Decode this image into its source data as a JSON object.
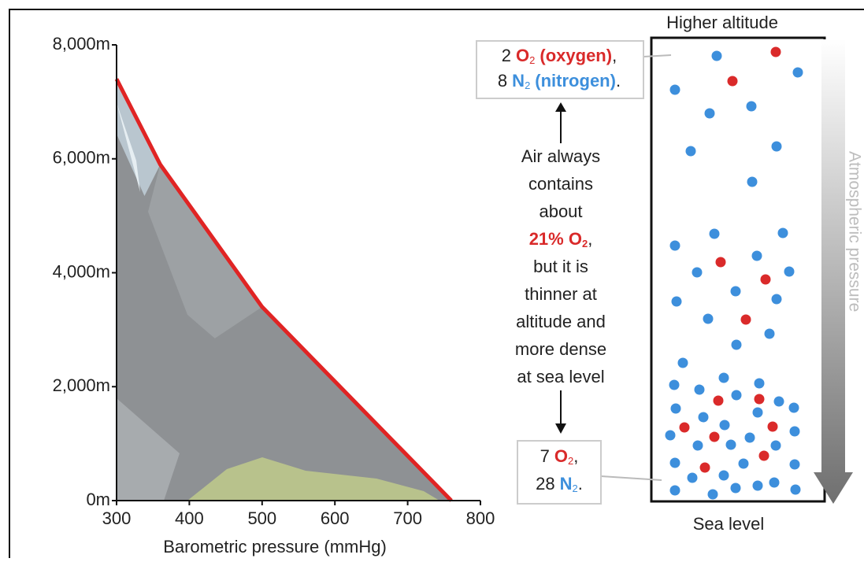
{
  "chart_data": {
    "type": "line",
    "x_label": "Barometric pressure (mmHg)",
    "xlim": [
      300,
      800
    ],
    "xticks": [
      300,
      400,
      500,
      600,
      700,
      800
    ],
    "ylim": [
      0,
      8000
    ],
    "yticks": [
      {
        "value": 0,
        "label": "0m"
      },
      {
        "value": 2000,
        "label": "2,000m"
      },
      {
        "value": 4000,
        "label": "4,000m"
      },
      {
        "value": 6000,
        "label": "6,000m"
      },
      {
        "value": 8000,
        "label": "8,000m"
      }
    ],
    "series": [
      {
        "color": "#e02424",
        "x": [
          300,
          360,
          500,
          760
        ],
        "values": [
          7400,
          5900,
          3400,
          0
        ]
      }
    ]
  },
  "info": {
    "top_label": "Higher altitude",
    "bottom_label": "Sea level",
    "pressure_label": "Atmospheric pressure",
    "top_box": [
      [
        "2",
        "O",
        "2",
        "(oxygen)",
        ","
      ],
      [
        "8",
        "N",
        "2",
        "(nitrogen)",
        "."
      ]
    ],
    "center_before": [
      "Air always",
      "contains",
      "about"
    ],
    "highlight": [
      "21% O",
      "2",
      ","
    ],
    "center_after": [
      "but it is",
      "thinner at",
      "altitude and",
      "more dense",
      "at sea level"
    ],
    "bottom_box": [
      [
        "7",
        "O",
        "2",
        ","
      ],
      [
        "28",
        "N",
        "2",
        "."
      ]
    ]
  }
}
